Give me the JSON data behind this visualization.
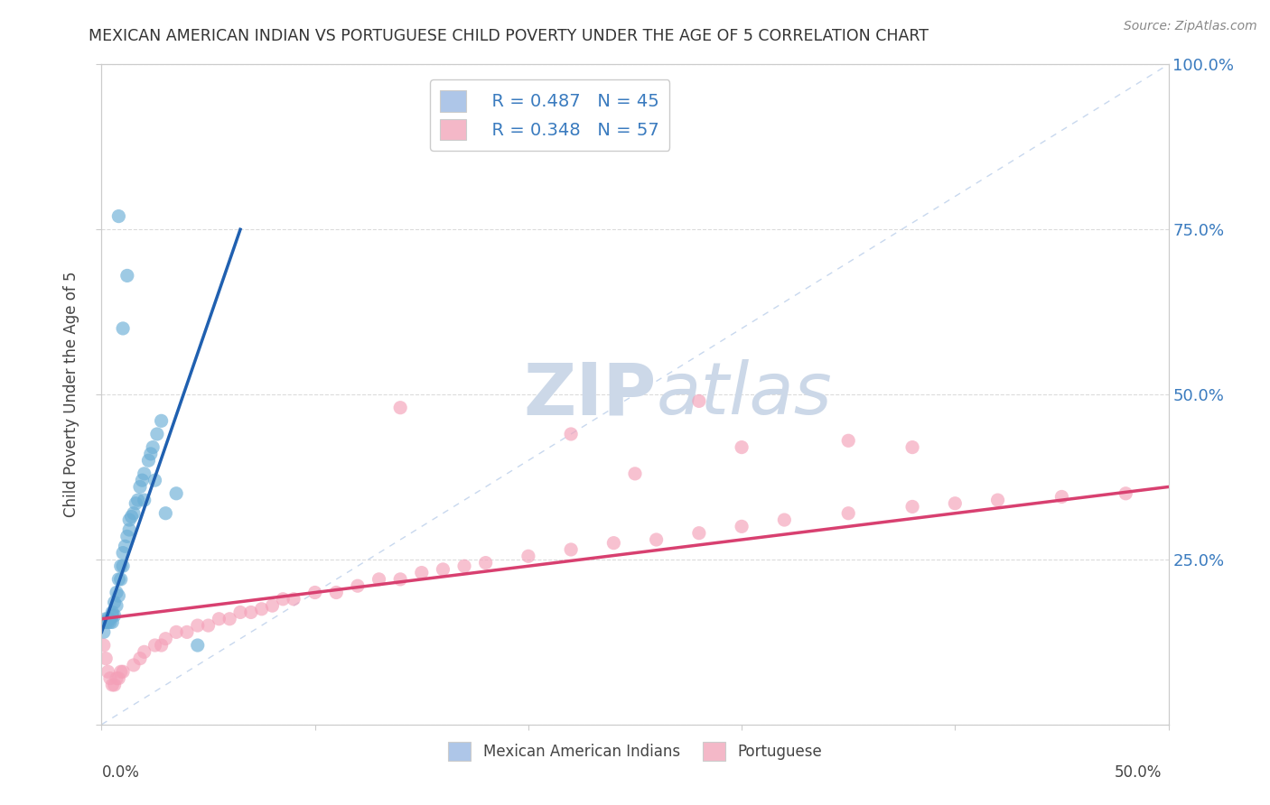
{
  "title": "MEXICAN AMERICAN INDIAN VS PORTUGUESE CHILD POVERTY UNDER THE AGE OF 5 CORRELATION CHART",
  "source": "Source: ZipAtlas.com",
  "ylabel": "Child Poverty Under the Age of 5",
  "legend_labels": [
    "Mexican American Indians",
    "Portuguese"
  ],
  "blue_color": "#6aaed6",
  "pink_color": "#f4a0b8",
  "blue_line_color": "#2060b0",
  "pink_line_color": "#d84070",
  "diag_color": "#c8d8ee",
  "blue_scatter": [
    [
      0.001,
      0.14
    ],
    [
      0.001,
      0.155
    ],
    [
      0.002,
      0.155
    ],
    [
      0.002,
      0.16
    ],
    [
      0.003,
      0.155
    ],
    [
      0.003,
      0.16
    ],
    [
      0.004,
      0.155
    ],
    [
      0.004,
      0.16
    ],
    [
      0.005,
      0.155
    ],
    [
      0.005,
      0.165
    ],
    [
      0.005,
      0.17
    ],
    [
      0.006,
      0.165
    ],
    [
      0.006,
      0.185
    ],
    [
      0.007,
      0.18
    ],
    [
      0.007,
      0.2
    ],
    [
      0.008,
      0.195
    ],
    [
      0.008,
      0.22
    ],
    [
      0.009,
      0.22
    ],
    [
      0.009,
      0.24
    ],
    [
      0.01,
      0.24
    ],
    [
      0.01,
      0.26
    ],
    [
      0.011,
      0.27
    ],
    [
      0.012,
      0.285
    ],
    [
      0.013,
      0.295
    ],
    [
      0.013,
      0.31
    ],
    [
      0.014,
      0.315
    ],
    [
      0.015,
      0.32
    ],
    [
      0.016,
      0.335
    ],
    [
      0.017,
      0.34
    ],
    [
      0.018,
      0.36
    ],
    [
      0.019,
      0.37
    ],
    [
      0.02,
      0.38
    ],
    [
      0.022,
      0.4
    ],
    [
      0.023,
      0.41
    ],
    [
      0.024,
      0.42
    ],
    [
      0.026,
      0.44
    ],
    [
      0.028,
      0.46
    ],
    [
      0.02,
      0.34
    ],
    [
      0.025,
      0.37
    ],
    [
      0.03,
      0.32
    ],
    [
      0.035,
      0.35
    ],
    [
      0.01,
      0.6
    ],
    [
      0.012,
      0.68
    ],
    [
      0.008,
      0.77
    ],
    [
      0.045,
      0.12
    ]
  ],
  "pink_scatter": [
    [
      0.001,
      0.12
    ],
    [
      0.002,
      0.1
    ],
    [
      0.003,
      0.08
    ],
    [
      0.004,
      0.07
    ],
    [
      0.005,
      0.06
    ],
    [
      0.006,
      0.06
    ],
    [
      0.007,
      0.07
    ],
    [
      0.008,
      0.07
    ],
    [
      0.009,
      0.08
    ],
    [
      0.01,
      0.08
    ],
    [
      0.015,
      0.09
    ],
    [
      0.018,
      0.1
    ],
    [
      0.02,
      0.11
    ],
    [
      0.025,
      0.12
    ],
    [
      0.028,
      0.12
    ],
    [
      0.03,
      0.13
    ],
    [
      0.035,
      0.14
    ],
    [
      0.04,
      0.14
    ],
    [
      0.045,
      0.15
    ],
    [
      0.05,
      0.15
    ],
    [
      0.055,
      0.16
    ],
    [
      0.06,
      0.16
    ],
    [
      0.065,
      0.17
    ],
    [
      0.07,
      0.17
    ],
    [
      0.075,
      0.175
    ],
    [
      0.08,
      0.18
    ],
    [
      0.085,
      0.19
    ],
    [
      0.09,
      0.19
    ],
    [
      0.1,
      0.2
    ],
    [
      0.11,
      0.2
    ],
    [
      0.12,
      0.21
    ],
    [
      0.13,
      0.22
    ],
    [
      0.14,
      0.22
    ],
    [
      0.15,
      0.23
    ],
    [
      0.16,
      0.235
    ],
    [
      0.17,
      0.24
    ],
    [
      0.18,
      0.245
    ],
    [
      0.2,
      0.255
    ],
    [
      0.22,
      0.265
    ],
    [
      0.24,
      0.275
    ],
    [
      0.26,
      0.28
    ],
    [
      0.28,
      0.29
    ],
    [
      0.3,
      0.3
    ],
    [
      0.32,
      0.31
    ],
    [
      0.35,
      0.32
    ],
    [
      0.38,
      0.33
    ],
    [
      0.4,
      0.335
    ],
    [
      0.42,
      0.34
    ],
    [
      0.45,
      0.345
    ],
    [
      0.48,
      0.35
    ],
    [
      0.14,
      0.48
    ],
    [
      0.28,
      0.49
    ],
    [
      0.22,
      0.44
    ],
    [
      0.3,
      0.42
    ],
    [
      0.35,
      0.43
    ],
    [
      0.25,
      0.38
    ],
    [
      0.38,
      0.42
    ]
  ],
  "xlim": [
    0.0,
    0.5
  ],
  "ylim": [
    0.0,
    1.0
  ],
  "background_color": "#ffffff",
  "watermark_zip": "ZIP",
  "watermark_atlas": "atlas",
  "watermark_color": "#ccd8e8",
  "r_blue": "0.487",
  "n_blue": "45",
  "r_pink": "0.348",
  "n_pink": "57"
}
